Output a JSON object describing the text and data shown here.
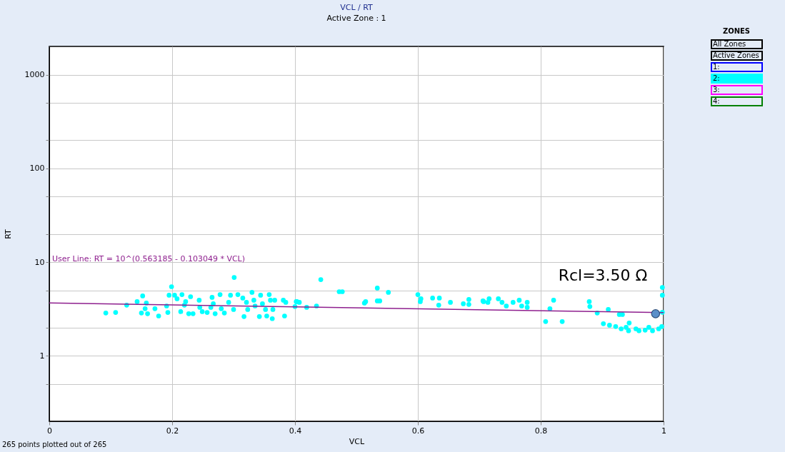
{
  "chart_data": {
    "type": "scatter",
    "title": "VCL / RT",
    "subtitle": "Active Zone : 1",
    "xlabel": "VCL",
    "ylabel": "RT",
    "legend_title": "ZONES",
    "legend": "right",
    "log": "y",
    "grid": true,
    "marker": "circle",
    "xlim": [
      0,
      1
    ],
    "xticks": [
      0,
      0.2,
      0.4,
      0.6,
      0.8,
      1
    ],
    "ylim": [
      0.2,
      2000
    ],
    "yticks": [
      {
        "value": 0.5,
        "label": null
      },
      1,
      {
        "value": 2,
        "label": null
      },
      {
        "value": 5,
        "label": null
      },
      10,
      {
        "value": 20,
        "label": null
      },
      {
        "value": 50,
        "label": null
      },
      100,
      {
        "value": 200,
        "label": null
      },
      {
        "value": 500,
        "label": null
      },
      1000
    ],
    "series": [
      {
        "name": "1:",
        "color": "#0000ff"
      },
      {
        "name": "2:",
        "color": "#00ffff",
        "x": [
          0.092,
          0.108,
          0.126,
          0.143,
          0.152,
          0.158,
          0.156,
          0.15,
          0.16,
          0.172,
          0.178,
          0.191,
          0.193,
          0.199,
          0.195,
          0.204,
          0.208,
          0.216,
          0.222,
          0.22,
          0.214,
          0.227,
          0.234,
          0.23,
          0.244,
          0.245,
          0.249,
          0.257,
          0.265,
          0.267,
          0.263,
          0.27,
          0.278,
          0.28,
          0.285,
          0.295,
          0.301,
          0.292,
          0.3,
          0.307,
          0.315,
          0.317,
          0.321,
          0.323,
          0.33,
          0.333,
          0.335,
          0.342,
          0.344,
          0.347,
          0.352,
          0.354,
          0.358,
          0.36,
          0.363,
          0.364,
          0.367,
          0.381,
          0.383,
          0.385,
          0.403,
          0.402,
          0.4,
          0.407,
          0.419,
          0.435,
          0.442,
          0.472,
          0.477,
          0.513,
          0.515,
          0.534,
          0.534,
          0.538,
          0.552,
          0.6,
          0.605,
          0.604,
          0.624,
          0.635,
          0.634,
          0.653,
          0.674,
          0.683,
          0.683,
          0.706,
          0.707,
          0.716,
          0.714,
          0.731,
          0.737,
          0.744,
          0.755,
          0.765,
          0.769,
          0.778,
          0.778,
          0.808,
          0.815,
          0.821,
          0.835,
          0.879,
          0.88,
          0.892,
          0.91,
          0.902,
          0.912,
          0.922,
          0.928,
          0.933,
          0.931,
          0.939,
          0.944,
          0.943,
          0.955,
          0.96,
          0.97,
          0.976,
          0.982,
          0.992,
          0.997,
          0.998,
          0.998,
          0.998
        ],
        "values": [
          2.86,
          2.9,
          3.47,
          3.78,
          4.35,
          3.65,
          3.18,
          2.86,
          2.81,
          3.18,
          2.66,
          3.4,
          2.9,
          5.46,
          4.43,
          4.43,
          4.06,
          4.5,
          3.78,
          3.47,
          2.96,
          2.81,
          2.81,
          4.27,
          3.92,
          3.29,
          2.96,
          2.9,
          4.2,
          3.59,
          3.29,
          2.81,
          4.5,
          3.18,
          2.86,
          4.43,
          6.85,
          3.72,
          3.12,
          4.5,
          4.13,
          2.62,
          3.72,
          3.12,
          4.75,
          3.92,
          3.4,
          2.62,
          4.43,
          3.59,
          3.12,
          2.66,
          4.5,
          3.92,
          2.49,
          3.12,
          3.92,
          3.92,
          2.66,
          3.72,
          3.78,
          3.78,
          3.35,
          3.72,
          3.29,
          3.4,
          6.5,
          4.83,
          4.83,
          3.65,
          3.78,
          5.28,
          3.85,
          3.85,
          4.75,
          4.5,
          4.06,
          3.78,
          4.13,
          4.13,
          3.47,
          3.72,
          3.59,
          3.99,
          3.53,
          3.85,
          3.78,
          4.06,
          3.72,
          4.06,
          3.72,
          3.4,
          3.72,
          3.92,
          3.4,
          3.72,
          3.29,
          2.32,
          3.18,
          3.92,
          2.32,
          3.78,
          3.35,
          2.86,
          3.12,
          2.2,
          2.12,
          2.05,
          2.76,
          2.76,
          1.94,
          2.01,
          2.24,
          1.85,
          1.94,
          1.85,
          1.88,
          2.01,
          1.85,
          1.94,
          2.05,
          5.36,
          4.43,
          2.91
        ]
      },
      {
        "name": "3:",
        "color": "#ff00ff"
      },
      {
        "name": "4:",
        "color": "#008000"
      },
      {
        "type": "line",
        "marker": "none",
        "color": "#8e1f8e",
        "x": [
          0,
          1
        ],
        "values": [
          3.658,
          2.885
        ]
      },
      {
        "color": "#5b8fc9",
        "x": [
          0.987
        ],
        "values": [
          2.81
        ]
      }
    ],
    "annotations": [
      "265 points plotted out of 265",
      "All Zones",
      "Active Zones",
      "User Line: RT = 10^(0.563185 - 0.103049 * VCL)",
      "Rcl=3.50 Ω"
    ]
  }
}
